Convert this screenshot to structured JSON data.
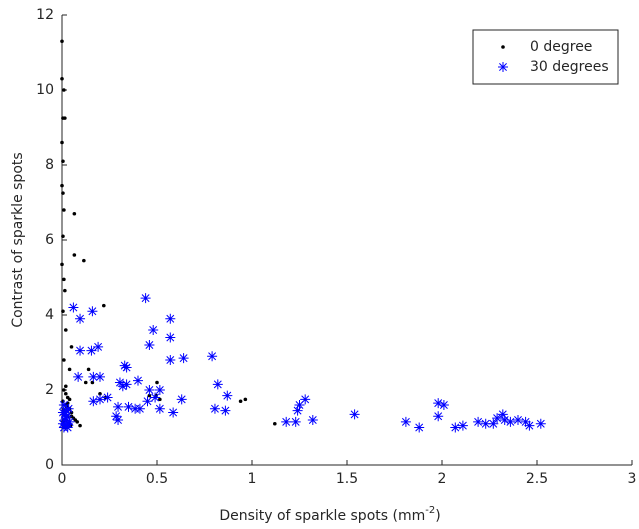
{
  "chart_data": {
    "type": "scatter",
    "x_label": {
      "text": "Density of sparkle spots (mm",
      "superscript": "-2",
      "suffix": ")"
    },
    "y_label": "Contrast of sparkle spots",
    "xlim": [
      0,
      3
    ],
    "ylim": [
      0,
      12
    ],
    "xticks": [
      0,
      0.5,
      1,
      1.5,
      2,
      2.5,
      3
    ],
    "yticks": [
      0,
      2,
      4,
      6,
      8,
      10,
      12
    ],
    "legend": "top-right",
    "series": [
      {
        "name": "0 degree",
        "color": "#000000",
        "marker": "dot",
        "x": [
          0,
          0,
          0.01,
          0.005,
          0.015,
          0,
          0.005,
          0,
          0.005,
          0.01,
          0.065,
          0.005,
          0,
          0.065,
          0.115,
          0.01,
          0.22,
          0.015,
          0.005,
          0.02,
          0.05,
          0.04,
          0.01,
          0.125,
          0.16,
          0.14,
          0.5,
          0.495,
          0.46,
          0.515,
          0.94,
          0.965,
          1.12,
          0.23,
          0.2,
          0.095,
          0.01,
          0.02,
          0.03,
          0.005,
          0.015,
          0.025,
          0.04,
          0.05,
          0.01,
          0.03,
          0.06,
          0.02,
          0.005,
          0.035,
          0.045,
          0.015,
          0.025,
          0.07,
          0.08,
          0.01,
          0.03,
          0.05,
          0.02,
          0.04
        ],
        "values": [
          11.3,
          10.3,
          10.0,
          9.25,
          9.25,
          8.6,
          8.1,
          7.45,
          7.25,
          6.8,
          6.7,
          6.1,
          5.35,
          5.6,
          5.45,
          4.95,
          4.25,
          4.65,
          4.1,
          3.6,
          3.15,
          2.55,
          2.8,
          2.2,
          2.2,
          2.55,
          2.2,
          1.85,
          1.85,
          1.75,
          1.7,
          1.75,
          1.1,
          1.8,
          1.9,
          1.05,
          2.0,
          1.9,
          1.8,
          1.7,
          1.6,
          1.55,
          1.5,
          1.4,
          1.35,
          1.3,
          1.25,
          1.2,
          1.15,
          1.1,
          1.05,
          1.0,
          1.0,
          1.2,
          1.15,
          1.45,
          1.65,
          1.3,
          2.1,
          1.75
        ]
      },
      {
        "name": "30 degrees",
        "color": "#0000ff",
        "marker": "star",
        "x": [
          0.44,
          0.06,
          0.16,
          0.095,
          0.57,
          0.48,
          0.57,
          0.46,
          0.095,
          0.155,
          0.19,
          0.64,
          0.57,
          0.79,
          0.33,
          0.34,
          0.085,
          0.165,
          0.2,
          0.4,
          0.305,
          0.32,
          0.34,
          0.82,
          0.46,
          0.515,
          0.87,
          0.63,
          0.165,
          0.2,
          0.24,
          0.45,
          0.49,
          0.515,
          0.295,
          0.35,
          0.385,
          0.41,
          0.805,
          0.86,
          0.585,
          0.285,
          0.295,
          1.25,
          1.28,
          1.24,
          1.54,
          1.32,
          1.18,
          1.23,
          1.98,
          2.01,
          1.98,
          1.81,
          1.88,
          2.07,
          2.11,
          2.19,
          2.23,
          2.29,
          2.32,
          2.27,
          2.33,
          2.36,
          2.4,
          2.44,
          2.46,
          2.52,
          0.01,
          0.02,
          0.03,
          0.015,
          0.025,
          0.005,
          0.035,
          0.01,
          0.02,
          0.04,
          0.015,
          0.03,
          0.005,
          0.025
        ],
        "values": [
          4.45,
          4.2,
          4.1,
          3.9,
          3.9,
          3.6,
          3.4,
          3.2,
          3.05,
          3.05,
          3.15,
          2.85,
          2.8,
          2.9,
          2.65,
          2.6,
          2.35,
          2.35,
          2.35,
          2.25,
          2.2,
          2.1,
          2.15,
          2.15,
          2.0,
          2.0,
          1.85,
          1.75,
          1.7,
          1.75,
          1.8,
          1.7,
          1.8,
          1.5,
          1.55,
          1.55,
          1.5,
          1.5,
          1.5,
          1.45,
          1.4,
          1.3,
          1.2,
          1.6,
          1.75,
          1.45,
          1.35,
          1.2,
          1.15,
          1.15,
          1.65,
          1.6,
          1.3,
          1.15,
          1.0,
          1.0,
          1.05,
          1.15,
          1.1,
          1.25,
          1.35,
          1.1,
          1.2,
          1.15,
          1.2,
          1.15,
          1.05,
          1.1,
          1.0,
          1.05,
          1.1,
          1.2,
          1.3,
          1.4,
          1.5,
          1.6,
          1.25,
          1.15,
          1.35,
          1.0,
          1.1,
          1.45
        ]
      }
    ]
  }
}
